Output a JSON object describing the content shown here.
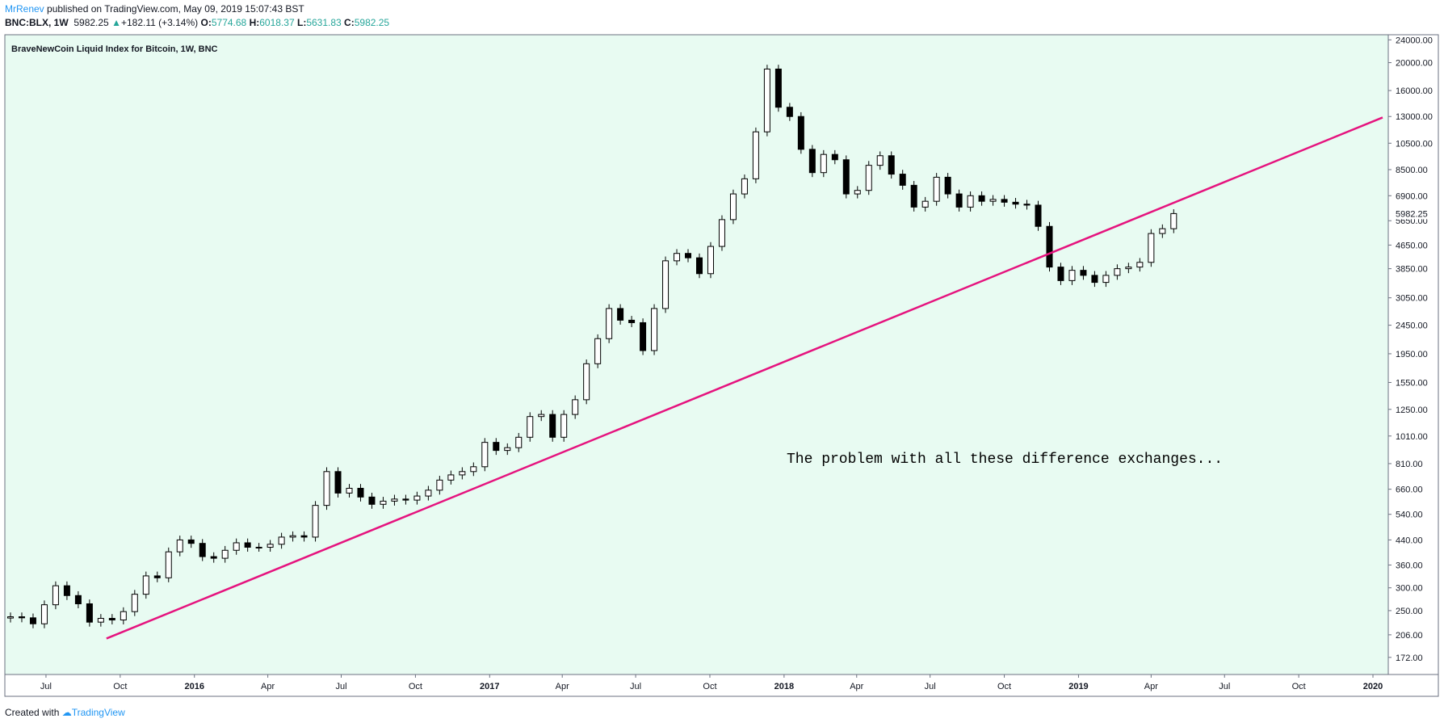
{
  "header": {
    "author": "MrRenev",
    "published": "published on TradingView.com, May 09, 2019 15:07:43 BST",
    "symbol": "BNC:BLX, 1W",
    "last": "5982.25",
    "change_arrow": "▲",
    "change": "+182.11 (+3.14%)",
    "open_label": "O:",
    "open": "5774.68",
    "high_label": "H:",
    "high": "6018.37",
    "low_label": "L:",
    "low": "5631.83",
    "close_label": "C:",
    "close": "5982.25"
  },
  "footer": {
    "created_with": "Created with",
    "brand": "TradingView"
  },
  "colors": {
    "background": "#e8fbf2",
    "trendline": "#e5137e",
    "bull_candle": "#ffffff",
    "bear_candle": "#000000",
    "brand": "#2196f3",
    "up": "#26a69a"
  },
  "chart_data": {
    "type": "candlestick",
    "title": "BraveNewCoin Liquid Index for Bitcoin, 1W, BNC",
    "annotation": "The problem with all these difference exchanges...",
    "y_scale": "log",
    "ylim": [
      150,
      25000
    ],
    "xlim": [
      "2015-05-11",
      "2020-01-20"
    ],
    "last_price_label": "5982.25",
    "y_ticks": [
      {
        "value": 172,
        "label": "172.00"
      },
      {
        "value": 206,
        "label": "206.00"
      },
      {
        "value": 250,
        "label": "250.00"
      },
      {
        "value": 300,
        "label": "300.00"
      },
      {
        "value": 360,
        "label": "360.00"
      },
      {
        "value": 440,
        "label": "440.00"
      },
      {
        "value": 540,
        "label": "540.00"
      },
      {
        "value": 660,
        "label": "660.00"
      },
      {
        "value": 810,
        "label": "810.00"
      },
      {
        "value": 1010,
        "label": "1010.00"
      },
      {
        "value": 1250,
        "label": "1250.00"
      },
      {
        "value": 1550,
        "label": "1550.00"
      },
      {
        "value": 1950,
        "label": "1950.00"
      },
      {
        "value": 2450,
        "label": "2450.00"
      },
      {
        "value": 3050,
        "label": "3050.00"
      },
      {
        "value": 3850,
        "label": "3850.00"
      },
      {
        "value": 4650,
        "label": "4650.00"
      },
      {
        "value": 5650,
        "label": "5650.00"
      },
      {
        "value": 6900,
        "label": "6900.00"
      },
      {
        "value": 8500,
        "label": "8500.00"
      },
      {
        "value": 10500,
        "label": "10500.00"
      },
      {
        "value": 13000,
        "label": "13000.00"
      },
      {
        "value": 16000,
        "label": "16000.00"
      },
      {
        "value": 20000,
        "label": "20000.00"
      },
      {
        "value": 24000,
        "label": "24000.00"
      }
    ],
    "x_ticks": [
      {
        "date": "2015-07-01",
        "label": "Jul"
      },
      {
        "date": "2015-10-01",
        "label": "Oct"
      },
      {
        "date": "2016-01-01",
        "label": "2016",
        "bold": true
      },
      {
        "date": "2016-04-01",
        "label": "Apr"
      },
      {
        "date": "2016-07-01",
        "label": "Jul"
      },
      {
        "date": "2016-10-01",
        "label": "Oct"
      },
      {
        "date": "2017-01-01",
        "label": "2017",
        "bold": true
      },
      {
        "date": "2017-04-01",
        "label": "Apr"
      },
      {
        "date": "2017-07-01",
        "label": "Jul"
      },
      {
        "date": "2017-10-01",
        "label": "Oct"
      },
      {
        "date": "2018-01-01",
        "label": "2018",
        "bold": true
      },
      {
        "date": "2018-04-01",
        "label": "Apr"
      },
      {
        "date": "2018-07-01",
        "label": "Jul"
      },
      {
        "date": "2018-10-01",
        "label": "Oct"
      },
      {
        "date": "2019-01-01",
        "label": "2019",
        "bold": true
      },
      {
        "date": "2019-04-01",
        "label": "Apr"
      },
      {
        "date": "2019-07-01",
        "label": "Jul"
      },
      {
        "date": "2019-10-01",
        "label": "Oct"
      },
      {
        "date": "2020-01-01",
        "label": "2020",
        "bold": true
      }
    ],
    "trendline": [
      {
        "date": "2015-09-14",
        "price": 200
      },
      {
        "date": "2020-01-13",
        "price": 12900
      }
    ],
    "series": [
      {
        "date": "2015-05-18",
        "price": 238
      },
      {
        "date": "2015-06-01",
        "price": 236
      },
      {
        "date": "2015-06-15",
        "price": 225
      },
      {
        "date": "2015-06-29",
        "price": 262
      },
      {
        "date": "2015-07-13",
        "price": 305
      },
      {
        "date": "2015-07-27",
        "price": 282
      },
      {
        "date": "2015-08-10",
        "price": 264
      },
      {
        "date": "2015-08-24",
        "price": 228
      },
      {
        "date": "2015-09-07",
        "price": 235
      },
      {
        "date": "2015-09-21",
        "price": 232
      },
      {
        "date": "2015-10-05",
        "price": 248
      },
      {
        "date": "2015-10-19",
        "price": 285
      },
      {
        "date": "2015-11-02",
        "price": 330
      },
      {
        "date": "2015-11-16",
        "price": 325
      },
      {
        "date": "2015-11-30",
        "price": 400
      },
      {
        "date": "2015-12-14",
        "price": 440
      },
      {
        "date": "2015-12-28",
        "price": 428
      },
      {
        "date": "2016-01-11",
        "price": 385
      },
      {
        "date": "2016-01-25",
        "price": 380
      },
      {
        "date": "2016-02-08",
        "price": 405
      },
      {
        "date": "2016-02-22",
        "price": 430
      },
      {
        "date": "2016-03-07",
        "price": 415
      },
      {
        "date": "2016-03-21",
        "price": 415
      },
      {
        "date": "2016-04-04",
        "price": 425
      },
      {
        "date": "2016-04-18",
        "price": 450
      },
      {
        "date": "2016-05-02",
        "price": 455
      },
      {
        "date": "2016-05-16",
        "price": 450
      },
      {
        "date": "2016-05-30",
        "price": 580
      },
      {
        "date": "2016-06-13",
        "price": 760
      },
      {
        "date": "2016-06-27",
        "price": 640
      },
      {
        "date": "2016-07-11",
        "price": 665
      },
      {
        "date": "2016-07-25",
        "price": 620
      },
      {
        "date": "2016-08-08",
        "price": 585
      },
      {
        "date": "2016-08-22",
        "price": 600
      },
      {
        "date": "2016-09-05",
        "price": 610
      },
      {
        "date": "2016-09-19",
        "price": 605
      },
      {
        "date": "2016-10-03",
        "price": 625
      },
      {
        "date": "2016-10-17",
        "price": 655
      },
      {
        "date": "2016-10-31",
        "price": 710
      },
      {
        "date": "2016-11-14",
        "price": 740
      },
      {
        "date": "2016-11-28",
        "price": 760
      },
      {
        "date": "2016-12-12",
        "price": 790
      },
      {
        "date": "2016-12-26",
        "price": 960
      },
      {
        "date": "2017-01-09",
        "price": 900
      },
      {
        "date": "2017-01-23",
        "price": 920
      },
      {
        "date": "2017-02-06",
        "price": 1000
      },
      {
        "date": "2017-02-20",
        "price": 1180
      },
      {
        "date": "2017-03-06",
        "price": 1200
      },
      {
        "date": "2017-03-20",
        "price": 1000
      },
      {
        "date": "2017-04-03",
        "price": 1200
      },
      {
        "date": "2017-04-17",
        "price": 1350
      },
      {
        "date": "2017-05-01",
        "price": 1800
      },
      {
        "date": "2017-05-15",
        "price": 2200
      },
      {
        "date": "2017-05-29",
        "price": 2800
      },
      {
        "date": "2017-06-12",
        "price": 2550
      },
      {
        "date": "2017-06-26",
        "price": 2500
      },
      {
        "date": "2017-07-10",
        "price": 2000
      },
      {
        "date": "2017-07-24",
        "price": 2800
      },
      {
        "date": "2017-08-07",
        "price": 4100
      },
      {
        "date": "2017-08-21",
        "price": 4350
      },
      {
        "date": "2017-09-04",
        "price": 4200
      },
      {
        "date": "2017-09-18",
        "price": 3700
      },
      {
        "date": "2017-10-02",
        "price": 4600
      },
      {
        "date": "2017-10-16",
        "price": 5700
      },
      {
        "date": "2017-10-30",
        "price": 7000
      },
      {
        "date": "2017-11-13",
        "price": 7900
      },
      {
        "date": "2017-11-27",
        "price": 11500
      },
      {
        "date": "2017-12-11",
        "price": 19000
      },
      {
        "date": "2017-12-25",
        "price": 14000
      },
      {
        "date": "2018-01-08",
        "price": 13000
      },
      {
        "date": "2018-01-22",
        "price": 10000
      },
      {
        "date": "2018-02-05",
        "price": 8300
      },
      {
        "date": "2018-02-19",
        "price": 9600
      },
      {
        "date": "2018-03-05",
        "price": 9200
      },
      {
        "date": "2018-03-19",
        "price": 7000
      },
      {
        "date": "2018-04-02",
        "price": 7200
      },
      {
        "date": "2018-04-16",
        "price": 8800
      },
      {
        "date": "2018-04-30",
        "price": 9500
      },
      {
        "date": "2018-05-14",
        "price": 8200
      },
      {
        "date": "2018-05-28",
        "price": 7500
      },
      {
        "date": "2018-06-11",
        "price": 6300
      },
      {
        "date": "2018-06-25",
        "price": 6600
      },
      {
        "date": "2018-07-09",
        "price": 8000
      },
      {
        "date": "2018-07-23",
        "price": 7000
      },
      {
        "date": "2018-08-06",
        "price": 6300
      },
      {
        "date": "2018-08-20",
        "price": 6900
      },
      {
        "date": "2018-09-03",
        "price": 6600
      },
      {
        "date": "2018-09-17",
        "price": 6700
      },
      {
        "date": "2018-10-01",
        "price": 6550
      },
      {
        "date": "2018-10-15",
        "price": 6450
      },
      {
        "date": "2018-10-29",
        "price": 6400
      },
      {
        "date": "2018-11-12",
        "price": 5400
      },
      {
        "date": "2018-11-26",
        "price": 3900
      },
      {
        "date": "2018-12-10",
        "price": 3500
      },
      {
        "date": "2018-12-24",
        "price": 3800
      },
      {
        "date": "2019-01-07",
        "price": 3650
      },
      {
        "date": "2019-01-21",
        "price": 3450
      },
      {
        "date": "2019-02-04",
        "price": 3650
      },
      {
        "date": "2019-02-18",
        "price": 3850
      },
      {
        "date": "2019-03-04",
        "price": 3900
      },
      {
        "date": "2019-03-18",
        "price": 4050
      },
      {
        "date": "2019-04-01",
        "price": 5100
      },
      {
        "date": "2019-04-15",
        "price": 5300
      },
      {
        "date": "2019-04-29",
        "price": 5982
      }
    ]
  }
}
